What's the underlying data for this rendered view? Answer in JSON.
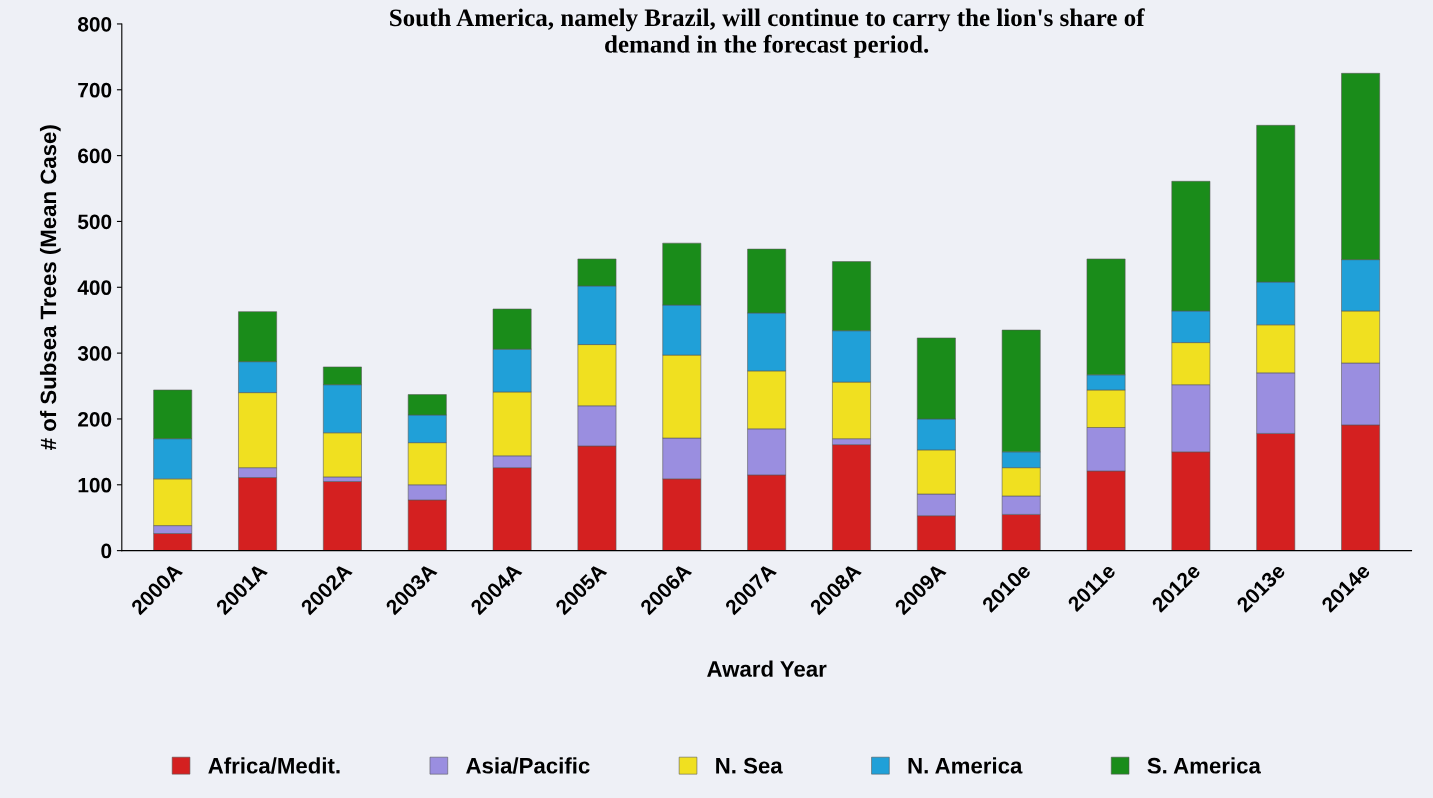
{
  "chart_data": {
    "type": "bar",
    "stacked": true,
    "title": "South America, namely Brazil, will continue to carry the lion's share of\ndemand in the forecast period.",
    "xlabel": "Award Year",
    "ylabel": "# of Subsea Trees (Mean Case)",
    "categories": [
      "2000A",
      "2001A",
      "2002A",
      "2003A",
      "2004A",
      "2005A",
      "2006A",
      "2007A",
      "2008A",
      "2009A",
      "2010e",
      "2011e",
      "2012e",
      "2013e",
      "2014e"
    ],
    "series": [
      {
        "name": "Africa/Medit.",
        "color": "#d42020",
        "values": [
          26,
          111,
          105,
          77,
          126,
          159,
          109,
          115,
          161,
          53,
          55,
          121,
          150,
          178,
          191
        ]
      },
      {
        "name": "Asia/Pacific",
        "color": "#9a8ee0",
        "values": [
          12,
          15,
          7,
          23,
          18,
          61,
          62,
          70,
          9,
          33,
          28,
          66,
          102,
          92,
          94
        ]
      },
      {
        "name": "N. Sea",
        "color": "#f0e020",
        "values": [
          71,
          114,
          67,
          64,
          97,
          93,
          126,
          88,
          86,
          67,
          43,
          57,
          64,
          73,
          79
        ]
      },
      {
        "name": "N. America",
        "color": "#20a0d8",
        "values": [
          61,
          47,
          73,
          42,
          65,
          89,
          76,
          88,
          78,
          47,
          24,
          23,
          48,
          65,
          78
        ]
      },
      {
        "name": "S. America",
        "color": "#1a8c1a",
        "values": [
          74,
          76,
          27,
          31,
          61,
          41,
          94,
          97,
          105,
          123,
          185,
          176,
          197,
          238,
          283
        ]
      }
    ],
    "ylim": [
      0,
      800
    ],
    "yticks": [
      0,
      100,
      200,
      300,
      400,
      500,
      600,
      700,
      800
    ],
    "grid": false,
    "legend": "bottom"
  }
}
